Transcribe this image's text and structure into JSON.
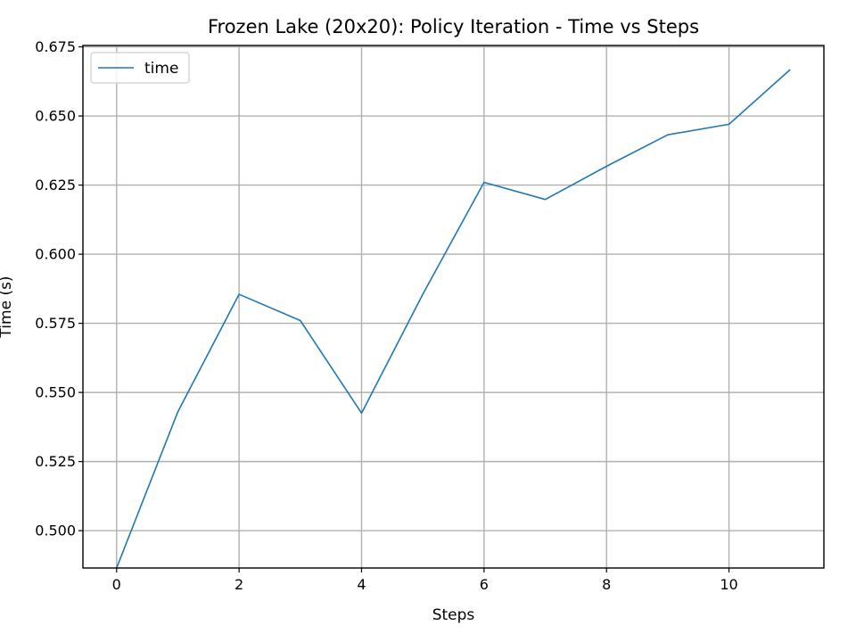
{
  "chart_data": {
    "type": "line",
    "title": "Frozen Lake (20x20): Policy Iteration - Time vs Steps",
    "xlabel": "Steps",
    "ylabel": "Time (s)",
    "xlim": [
      -0.55,
      11.55
    ],
    "ylim": [
      0.4865,
      0.6755
    ],
    "xticks": [
      0,
      2,
      4,
      6,
      8,
      10
    ],
    "yticks": [
      0.5,
      0.525,
      0.55,
      0.575,
      0.6,
      0.625,
      0.65,
      0.675
    ],
    "xtick_labels": [
      "0",
      "2",
      "4",
      "6",
      "8",
      "10"
    ],
    "ytick_labels": [
      "0.500",
      "0.525",
      "0.550",
      "0.575",
      "0.600",
      "0.625",
      "0.650",
      "0.675"
    ],
    "grid": true,
    "legend_position": "top-left",
    "series": [
      {
        "name": "time",
        "color": "#1f77b4",
        "x": [
          0,
          1,
          2,
          3,
          4,
          5,
          6,
          7,
          8,
          9,
          10,
          11
        ],
        "y": [
          0.4865,
          0.543,
          0.5855,
          0.576,
          0.5425,
          0.5855,
          0.626,
          0.6198,
          0.6318,
          0.6432,
          0.647,
          0.6668
        ]
      }
    ]
  }
}
